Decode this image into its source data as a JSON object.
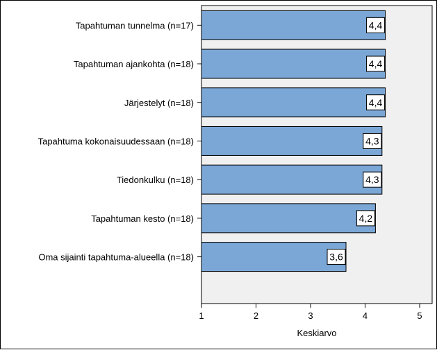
{
  "chart_data": {
    "type": "bar",
    "orientation": "horizontal",
    "categories": [
      "Tapahtuman tunnelma (n=17)",
      "Tapahtuman ajankohta (n=18)",
      "Järjestelyt (n=18)",
      "Tapahtuma kokonaisuudessaan (n=18)",
      "Tiedonkulku (n=18)",
      "Tapahtuman kesto (n=18)",
      "Oma sijainti tapahtuma-alueella (n=18)"
    ],
    "values": [
      4.37,
      4.37,
      4.37,
      4.31,
      4.31,
      4.19,
      3.65
    ],
    "data_labels": [
      "4,4",
      "4,4",
      "4,4",
      "4,3",
      "4,3",
      "4,2",
      "3,6"
    ],
    "xlabel": "Keskiarvo",
    "ylabel": "",
    "xlim": [
      1,
      5
    ],
    "xticks": [
      1,
      2,
      3,
      4,
      5
    ],
    "xtick_labels": [
      "1",
      "2",
      "3",
      "4",
      "5"
    ],
    "grid": false,
    "colors": {
      "bar_fill": "#7ba7d6",
      "bar_stroke": "#000000",
      "plot_background": "#f0f0f0",
      "label_box": "#ffffff"
    }
  }
}
